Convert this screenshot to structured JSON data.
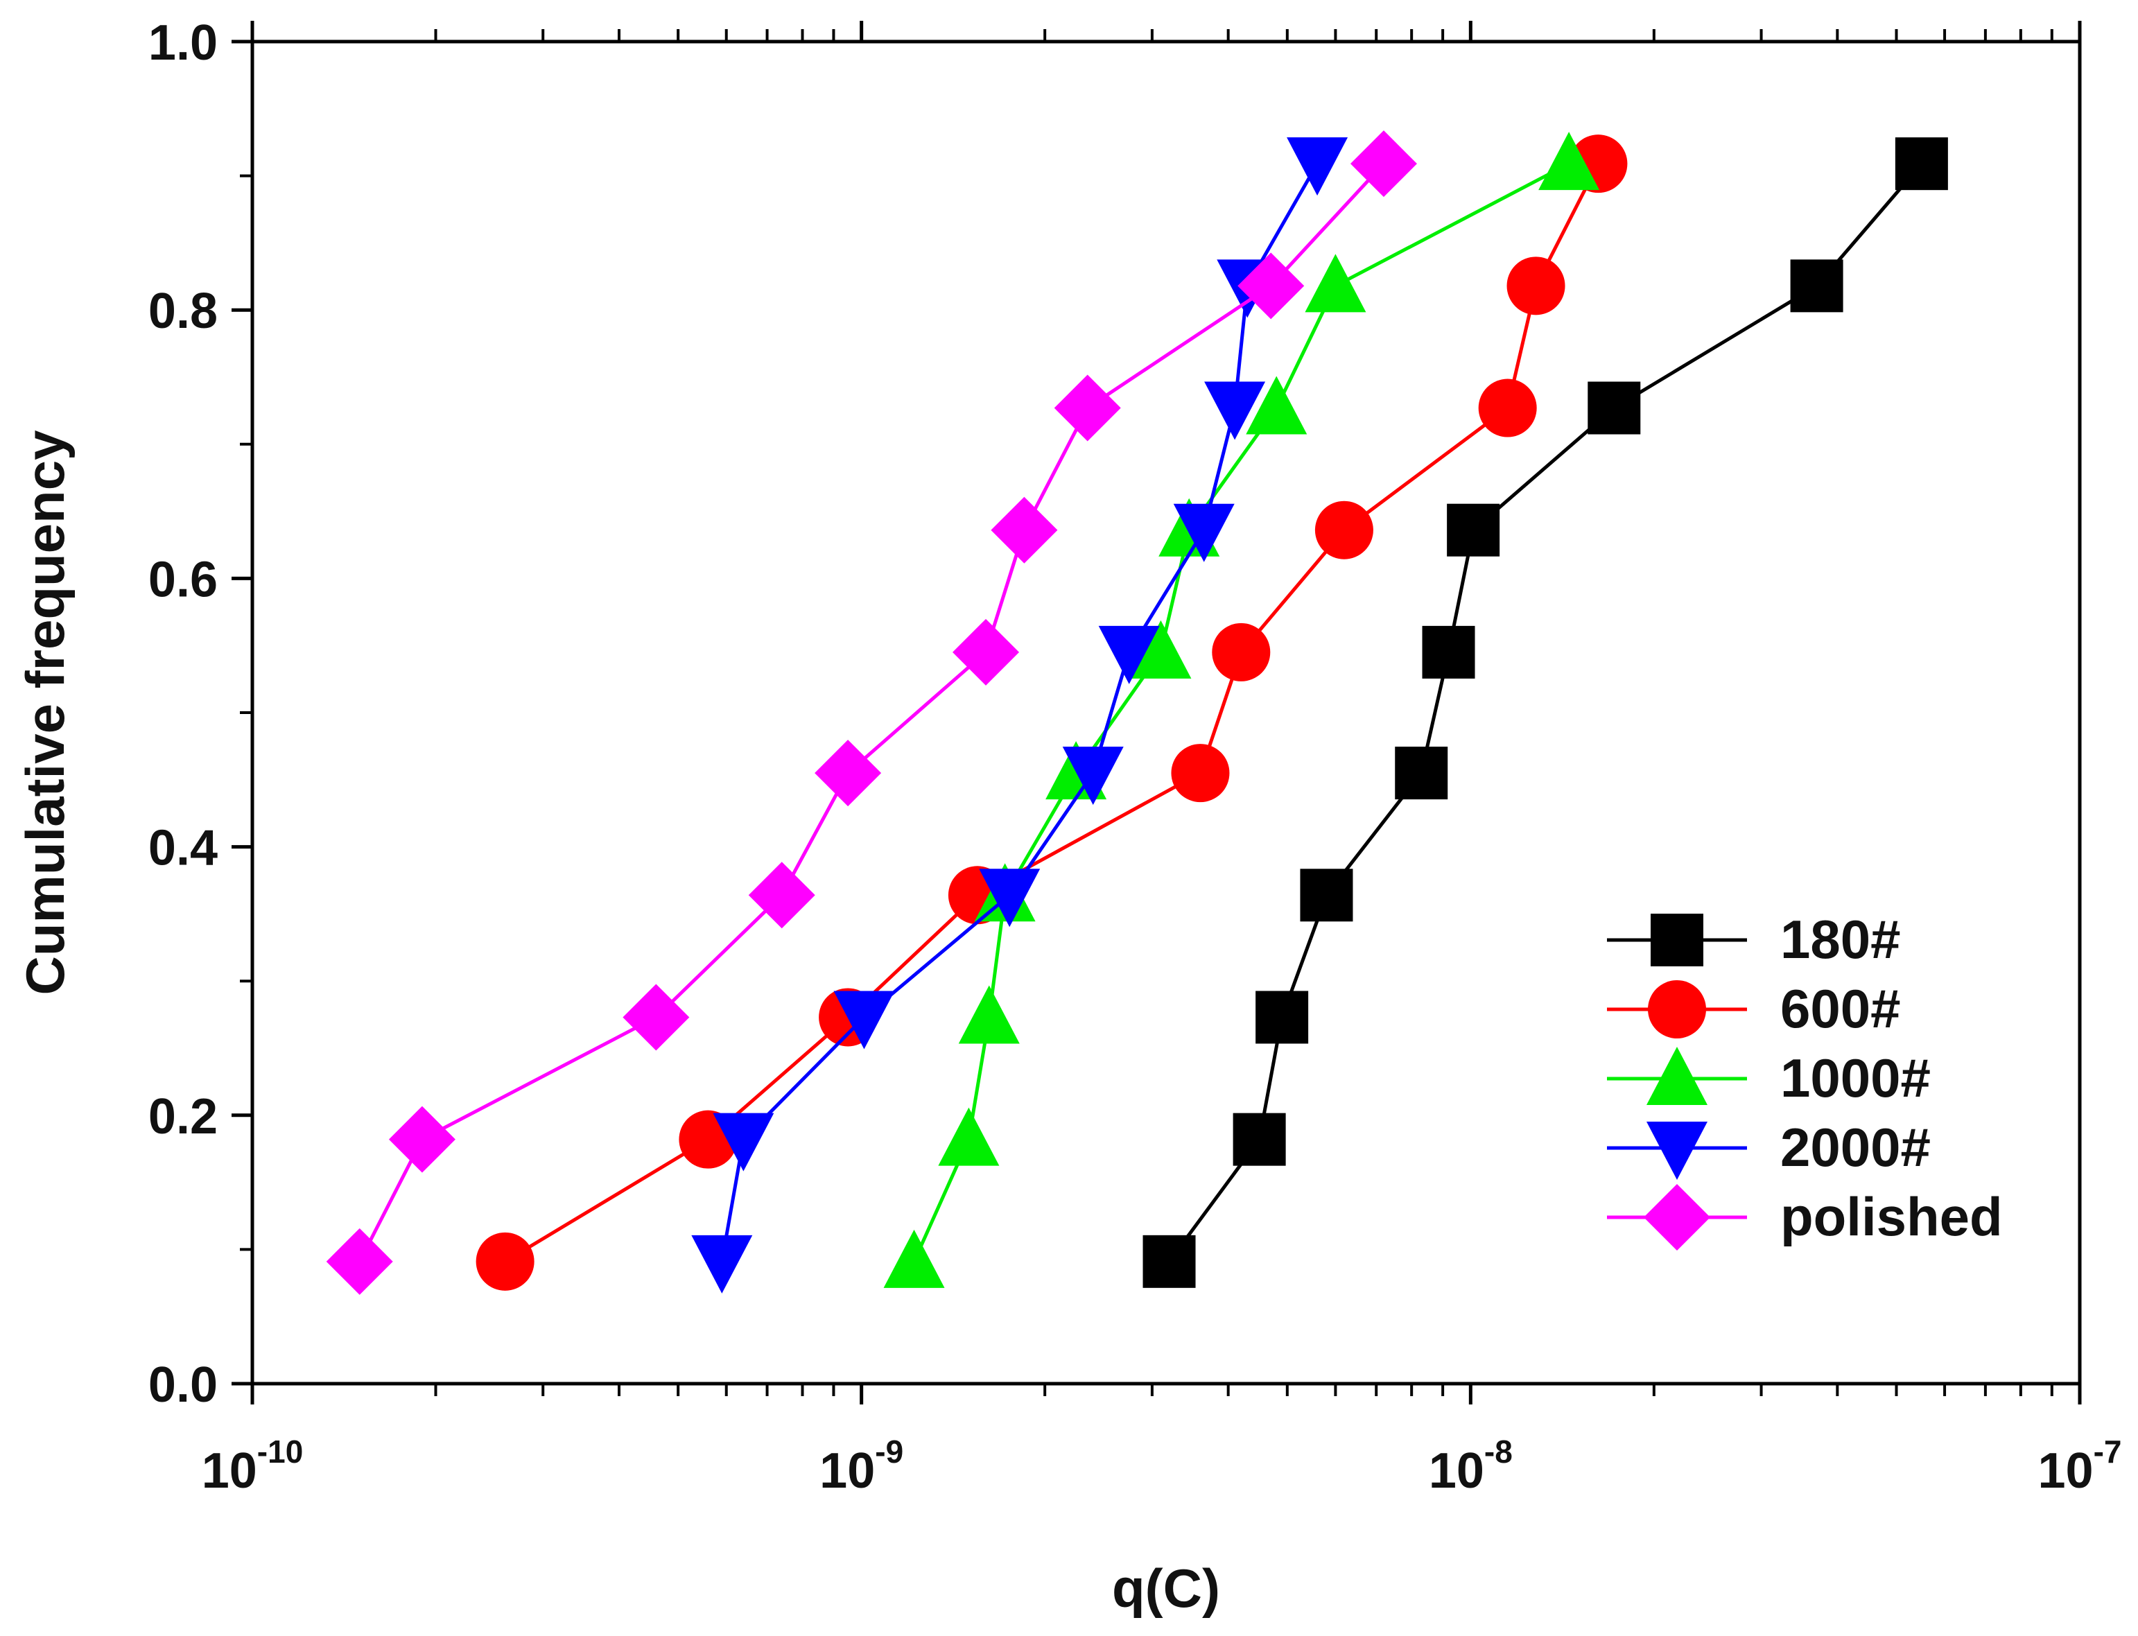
{
  "chart_data": {
    "type": "line",
    "title": "",
    "xlabel": "q(C)",
    "ylabel": "Cumulative frequency",
    "xscale": "log",
    "xlim": [
      1e-10,
      1e-07
    ],
    "ylim": [
      0.0,
      1.0
    ],
    "grid": false,
    "legend_position": "bottom-right",
    "x_ticks": [
      {
        "base": "10",
        "exp": "-10",
        "value": 1e-10
      },
      {
        "base": "10",
        "exp": "-9",
        "value": 1e-09
      },
      {
        "base": "10",
        "exp": "-8",
        "value": 1e-08
      },
      {
        "base": "10",
        "exp": "-7",
        "value": 1e-07
      }
    ],
    "y_ticks": [
      "0.0",
      "0.2",
      "0.4",
      "0.6",
      "0.8",
      "1.0"
    ],
    "series": [
      {
        "name": "180#",
        "color": "#000000",
        "marker": "square",
        "x": [
          3.2e-09,
          4.5e-09,
          4.9e-09,
          5.8e-09,
          8.3e-09,
          9.2e-09,
          1.01e-08,
          1.72e-08,
          3.7e-08,
          5.5e-08
        ],
        "y": [
          0.091,
          0.182,
          0.273,
          0.364,
          0.455,
          0.545,
          0.636,
          0.727,
          0.818,
          0.909
        ]
      },
      {
        "name": "600#",
        "color": "#ff0000",
        "marker": "circle",
        "x": [
          2.6e-10,
          5.6e-10,
          9.5e-10,
          1.55e-09,
          3.6e-09,
          4.2e-09,
          6.2e-09,
          1.15e-08,
          1.28e-08,
          1.62e-08
        ],
        "y": [
          0.091,
          0.182,
          0.273,
          0.364,
          0.455,
          0.545,
          0.636,
          0.727,
          0.818,
          0.909
        ]
      },
      {
        "name": "1000#",
        "color": "#00ee00",
        "marker": "triangle-up",
        "x": [
          1.22e-09,
          1.5e-09,
          1.62e-09,
          1.72e-09,
          2.25e-09,
          3.1e-09,
          3.45e-09,
          4.8e-09,
          6e-09,
          1.45e-08
        ],
        "y": [
          0.091,
          0.182,
          0.273,
          0.364,
          0.455,
          0.545,
          0.636,
          0.727,
          0.818,
          0.909
        ]
      },
      {
        "name": "2000#",
        "color": "#0000ff",
        "marker": "triangle-down",
        "x": [
          5.9e-10,
          6.4e-10,
          1.01e-09,
          1.75e-09,
          2.4e-09,
          2.75e-09,
          3.65e-09,
          4.1e-09,
          4.3e-09,
          5.6e-09
        ],
        "y": [
          0.091,
          0.182,
          0.273,
          0.364,
          0.455,
          0.545,
          0.636,
          0.727,
          0.818,
          0.909
        ]
      },
      {
        "name": "polished",
        "color": "#ff00ff",
        "marker": "diamond",
        "x": [
          1.5e-10,
          1.9e-10,
          4.6e-10,
          7.4e-10,
          9.5e-10,
          1.6e-09,
          1.85e-09,
          2.35e-09,
          4.7e-09,
          7.2e-09
        ],
        "y": [
          0.091,
          0.182,
          0.273,
          0.364,
          0.455,
          0.545,
          0.636,
          0.727,
          0.818,
          0.909
        ]
      }
    ]
  }
}
